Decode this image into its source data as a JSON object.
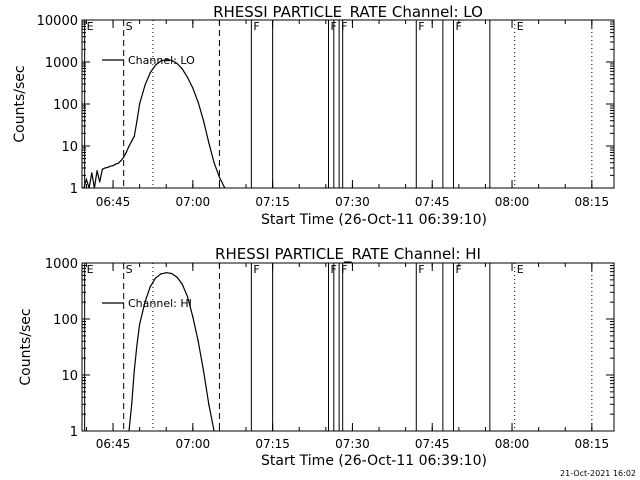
{
  "footer_timestamp": "21-Oct-2021 16:02",
  "chart_data": [
    {
      "type": "line",
      "title": "RHESSI PARTICLE_RATE Channel: LO",
      "xlabel": "Start Time (26-Oct-11 06:39:10)",
      "ylabel": "Counts/sec",
      "y_scale": "log",
      "xlim": [
        "06:39:10",
        "08:19:10"
      ],
      "ylim": [
        1,
        10000
      ],
      "x_ticks": [
        "06:45",
        "07:00",
        "07:15",
        "07:30",
        "07:45",
        "08:00",
        "08:15"
      ],
      "y_ticks": [
        "1",
        "10",
        "100",
        "1000",
        "10000"
      ],
      "legend": {
        "position": "top-left",
        "entries": [
          "Channel: LO"
        ]
      },
      "series": [
        {
          "name": "Channel: LO",
          "x": [
            "06:39:30",
            "06:40:00",
            "06:40:30",
            "06:41:00",
            "06:41:30",
            "06:42:00",
            "06:42:30",
            "06:43:00",
            "06:43:30",
            "06:44:00",
            "06:44:30",
            "06:45:00",
            "06:45:30",
            "06:46:00",
            "06:46:30",
            "06:47:00",
            "06:47:30",
            "06:48:00",
            "06:48:30",
            "06:49:00",
            "06:49:30",
            "06:50:00",
            "06:51:00",
            "06:52:00",
            "06:53:00",
            "06:54:00",
            "06:55:00",
            "06:56:00",
            "06:57:00",
            "06:58:00",
            "06:59:00",
            "07:00:00",
            "07:01:00",
            "07:02:00",
            "07:03:00",
            "07:04:00",
            "07:05:00",
            "07:06:00"
          ],
          "values": [
            1.0,
            1.6,
            1.0,
            2.3,
            1.0,
            2.6,
            1.4,
            2.8,
            3.0,
            3.1,
            3.3,
            3.4,
            3.7,
            3.9,
            4.5,
            5.4,
            7.1,
            9.9,
            13,
            17,
            40,
            100,
            280,
            560,
            850,
            1060,
            1140,
            1100,
            930,
            690,
            430,
            240,
            110,
            40,
            12,
            4,
            1.8,
            1.0
          ]
        }
      ],
      "annotations": [
        {
          "label": "E",
          "time": "06:39:40",
          "style": "solid"
        },
        {
          "label": "S",
          "time": "06:47:00",
          "style": "dashed"
        },
        {
          "label": "",
          "time": "06:52:30",
          "style": "dotted"
        },
        {
          "label": "",
          "time": "07:05:00",
          "style": "dashed"
        },
        {
          "label": "F",
          "time": "07:11:00",
          "style": "solid"
        },
        {
          "label": "",
          "time": "07:15:00",
          "style": "solid"
        },
        {
          "label": "F",
          "time": "07:25:30",
          "style": "solid"
        },
        {
          "label": "",
          "time": "07:26:30",
          "style": "solid"
        },
        {
          "label": "F",
          "time": "07:27:30",
          "style": "solid"
        },
        {
          "label": "",
          "time": "07:28:10",
          "style": "solid"
        },
        {
          "label": "F",
          "time": "07:42:00",
          "style": "solid"
        },
        {
          "label": "",
          "time": "07:47:00",
          "style": "solid"
        },
        {
          "label": "F",
          "time": "07:49:00",
          "style": "solid"
        },
        {
          "label": "",
          "time": "07:55:50",
          "style": "solid"
        },
        {
          "label": "E",
          "time": "08:00:30",
          "style": "dotted"
        },
        {
          "label": "",
          "time": "08:15:00",
          "style": "dotted"
        }
      ]
    },
    {
      "type": "line",
      "title": "RHESSI PARTICLE_RATE Channel: HI",
      "xlabel": "Start Time (26-Oct-11 06:39:10)",
      "ylabel": "Counts/sec",
      "y_scale": "log",
      "xlim": [
        "06:39:10",
        "08:19:10"
      ],
      "ylim": [
        1,
        1000
      ],
      "x_ticks": [
        "06:45",
        "07:00",
        "07:15",
        "07:30",
        "07:45",
        "08:00",
        "08:15"
      ],
      "y_ticks": [
        "1",
        "10",
        "100",
        "1000"
      ],
      "legend": {
        "position": "top-left",
        "entries": [
          "Channel: HI"
        ]
      },
      "series": [
        {
          "name": "Channel: HI",
          "x": [
            "06:48:00",
            "06:48:30",
            "06:49:00",
            "06:49:30",
            "06:50:00",
            "06:51:00",
            "06:52:00",
            "06:53:00",
            "06:54:00",
            "06:55:00",
            "06:56:00",
            "06:57:00",
            "06:58:00",
            "06:59:00",
            "07:00:00",
            "07:01:00",
            "07:02:00",
            "07:03:00",
            "07:04:00"
          ],
          "values": [
            1.0,
            3,
            12,
            35,
            80,
            200,
            380,
            540,
            640,
            670,
            650,
            560,
            420,
            250,
            110,
            40,
            12,
            3,
            1.0
          ]
        }
      ],
      "annotations": [
        {
          "label": "E",
          "time": "06:39:40",
          "style": "solid"
        },
        {
          "label": "S",
          "time": "06:47:00",
          "style": "dashed"
        },
        {
          "label": "",
          "time": "06:52:30",
          "style": "dotted"
        },
        {
          "label": "",
          "time": "07:05:00",
          "style": "dashed"
        },
        {
          "label": "F",
          "time": "07:11:00",
          "style": "solid"
        },
        {
          "label": "",
          "time": "07:15:00",
          "style": "solid"
        },
        {
          "label": "F",
          "time": "07:25:30",
          "style": "solid"
        },
        {
          "label": "",
          "time": "07:26:30",
          "style": "solid"
        },
        {
          "label": "F",
          "time": "07:27:30",
          "style": "solid"
        },
        {
          "label": "",
          "time": "07:28:10",
          "style": "solid"
        },
        {
          "label": "F",
          "time": "07:42:00",
          "style": "solid"
        },
        {
          "label": "",
          "time": "07:47:00",
          "style": "solid"
        },
        {
          "label": "F",
          "time": "07:49:00",
          "style": "solid"
        },
        {
          "label": "",
          "time": "07:55:50",
          "style": "solid"
        },
        {
          "label": "E",
          "time": "08:00:30",
          "style": "dotted"
        },
        {
          "label": "",
          "time": "08:15:00",
          "style": "dotted"
        }
      ]
    }
  ]
}
